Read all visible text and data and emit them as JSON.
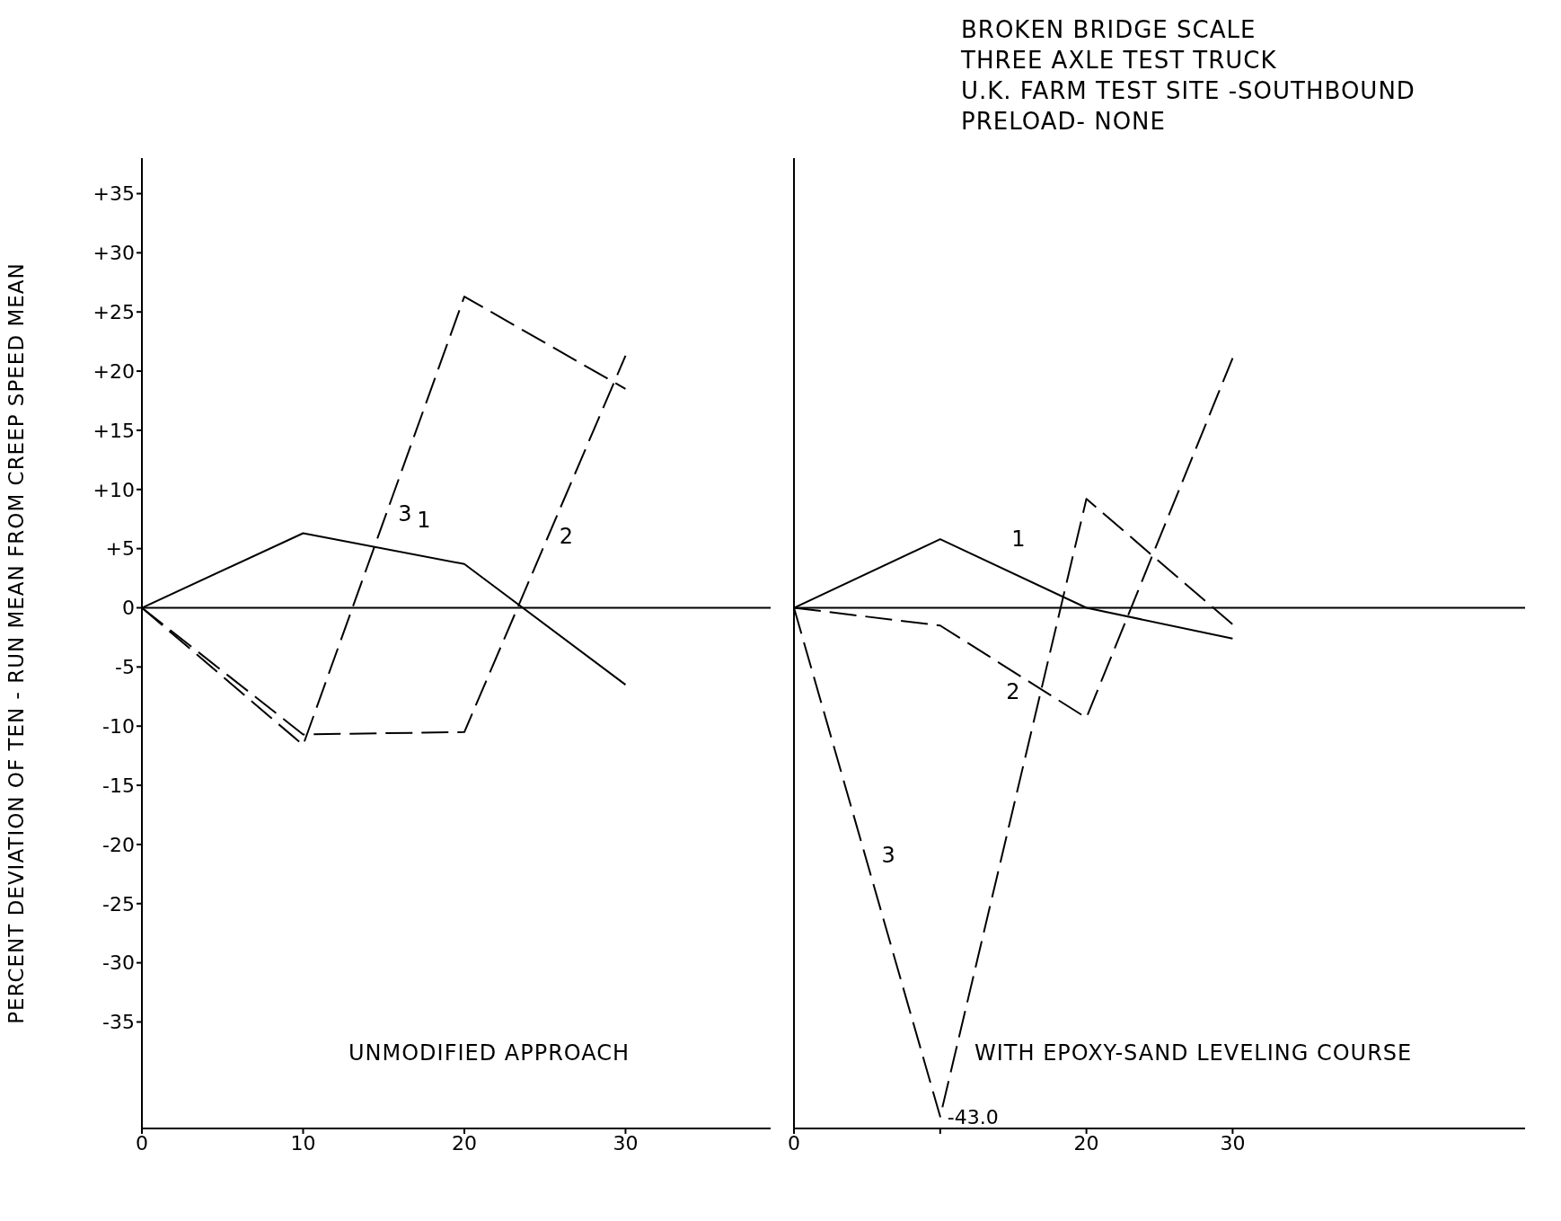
{
  "chart_data": [
    {
      "type": "line",
      "ylabel": "PERCENT DEVIATION OF TEN - RUN MEAN FROM CREEP  SPEED MEAN",
      "x": [
        0,
        10,
        20,
        30
      ],
      "xlim": [
        0,
        39
      ],
      "xticks": [
        0,
        10,
        20,
        30
      ],
      "ylim": [
        -44,
        38
      ],
      "yticks": [
        {
          "value": 35,
          "label": "+35"
        },
        {
          "value": 30,
          "label": "+30"
        },
        {
          "value": 25,
          "label": "+25"
        },
        {
          "value": 20,
          "label": "+20"
        },
        {
          "value": 15,
          "label": "+15"
        },
        {
          "value": 10,
          "label": "+10"
        },
        {
          "value": 5,
          "label": "+5"
        },
        0,
        -5,
        -10,
        -15,
        -20,
        -25,
        -30,
        -35
      ],
      "marker": "none",
      "ref_lines": [
        {
          "axis": "y",
          "value": 0
        }
      ],
      "annotations": [
        "UNMODIFIED APPROACH"
      ],
      "series": [
        {
          "name": "1",
          "color": "#000000",
          "line_style": "solid",
          "values": [
            0,
            6.3,
            3.7,
            -6.5
          ]
        },
        {
          "name": "2",
          "color": "#000000",
          "line_style": "dashed",
          "values": [
            0,
            -10.7,
            -10.5,
            21.3
          ]
        },
        {
          "name": "3",
          "color": "#000000",
          "line_style": "dashed",
          "values": [
            0,
            -11.6,
            26.3,
            18.5
          ]
        }
      ]
    },
    {
      "type": "line",
      "title": "BROKEN BRIDGE SCALE",
      "subtitle": "THREE AXLE TEST TRUCK\nU.K. FARM TEST SITE -SOUTHBOUND\nPRELOAD- NONE",
      "x": [
        0,
        10,
        20,
        30
      ],
      "xlim": [
        0,
        50
      ],
      "xticks": [
        0,
        {
          "value": 10,
          "label": null
        },
        20,
        30
      ],
      "ylim": [
        -44,
        38
      ],
      "tick_labels": "x",
      "marker": "none",
      "ref_lines": [
        {
          "axis": "y",
          "value": 0
        }
      ],
      "annotations": [
        "WITH EPOXY-SAND LEVELING COURSE",
        {
          "text": "-43.0",
          "x": 10,
          "y": -43
        }
      ],
      "series": [
        {
          "name": "1",
          "color": "#000000",
          "line_style": "solid",
          "values": [
            0,
            5.8,
            0,
            -2.6
          ]
        },
        {
          "name": "2",
          "color": "#000000",
          "line_style": "dashed",
          "values": [
            0,
            -1.5,
            -9.3,
            21.1
          ]
        },
        {
          "name": "3",
          "color": "#000000",
          "line_style": "dashed",
          "values": [
            0,
            -43.0,
            9.2,
            -1.4
          ]
        }
      ]
    }
  ]
}
